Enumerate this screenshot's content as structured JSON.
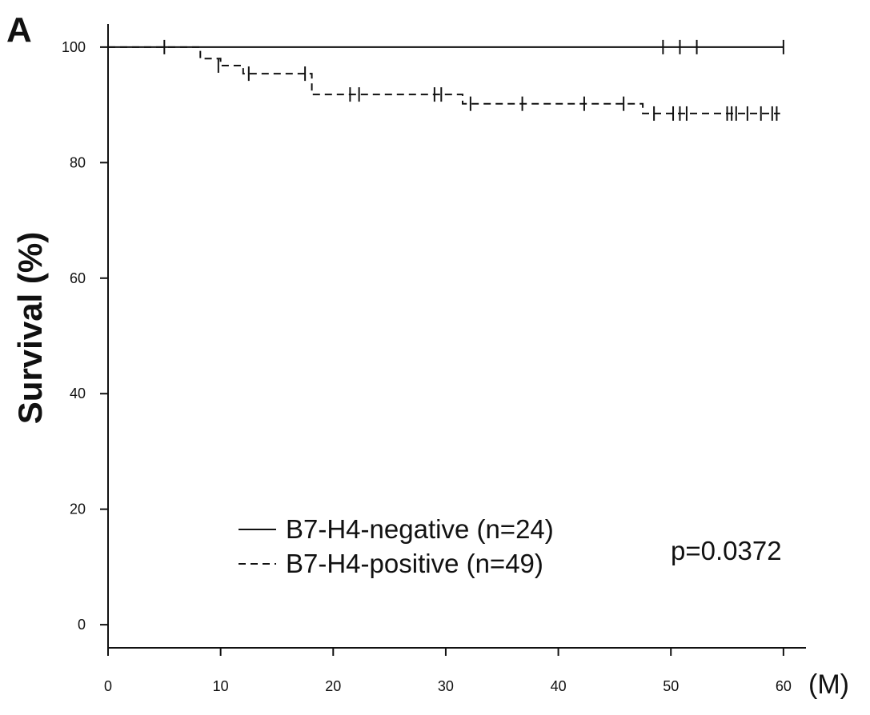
{
  "panel_label": "A",
  "chart_data": {
    "type": "line",
    "subtype": "kaplan-meier",
    "ylabel": "Survival (%)",
    "xunit": "(M)",
    "xlim": [
      0,
      62
    ],
    "ylim": [
      -4,
      104
    ],
    "xticks": [
      0,
      10,
      20,
      30,
      40,
      50,
      60
    ],
    "yticks": [
      0,
      20,
      40,
      60,
      80,
      100
    ],
    "grid": false,
    "legend_position": "lower-center",
    "p_value": "p=0.0372",
    "series": [
      {
        "name": "B7-H4-negative (n=24)",
        "line_style": "solid",
        "steps": [
          [
            0,
            100
          ],
          [
            60,
            100
          ]
        ],
        "censored": [
          [
            5,
            100
          ],
          [
            49.3,
            100
          ],
          [
            50.8,
            100
          ],
          [
            52.3,
            100
          ],
          [
            60,
            100
          ]
        ]
      },
      {
        "name": "B7-H4-positive (n=49)",
        "line_style": "dashed",
        "steps": [
          [
            0,
            100
          ],
          [
            8.2,
            100
          ],
          [
            8.2,
            98
          ],
          [
            10,
            98
          ],
          [
            10,
            96.8
          ],
          [
            12,
            96.8
          ],
          [
            12,
            95.4
          ],
          [
            18.1,
            95.4
          ],
          [
            18.1,
            91.8
          ],
          [
            31.5,
            91.8
          ],
          [
            31.5,
            90.2
          ],
          [
            47.5,
            90.2
          ],
          [
            47.5,
            88.5
          ],
          [
            59.7,
            88.5
          ]
        ],
        "censored": [
          [
            9.8,
            96.8
          ],
          [
            12.5,
            95.4
          ],
          [
            17.5,
            95.4
          ],
          [
            21.5,
            91.8
          ],
          [
            22.3,
            91.8
          ],
          [
            29,
            91.8
          ],
          [
            29.6,
            91.8
          ],
          [
            32.2,
            90.2
          ],
          [
            36.8,
            90.2
          ],
          [
            42.3,
            90.2
          ],
          [
            45.8,
            90.2
          ],
          [
            48.5,
            88.5
          ],
          [
            50.2,
            88.5
          ],
          [
            50.8,
            88.5
          ],
          [
            51.4,
            88.5
          ],
          [
            55,
            88.5
          ],
          [
            55.4,
            88.5
          ],
          [
            55.8,
            88.5
          ],
          [
            56.8,
            88.5
          ],
          [
            58,
            88.5
          ],
          [
            59,
            88.5
          ],
          [
            59.4,
            88.5
          ]
        ]
      }
    ]
  }
}
